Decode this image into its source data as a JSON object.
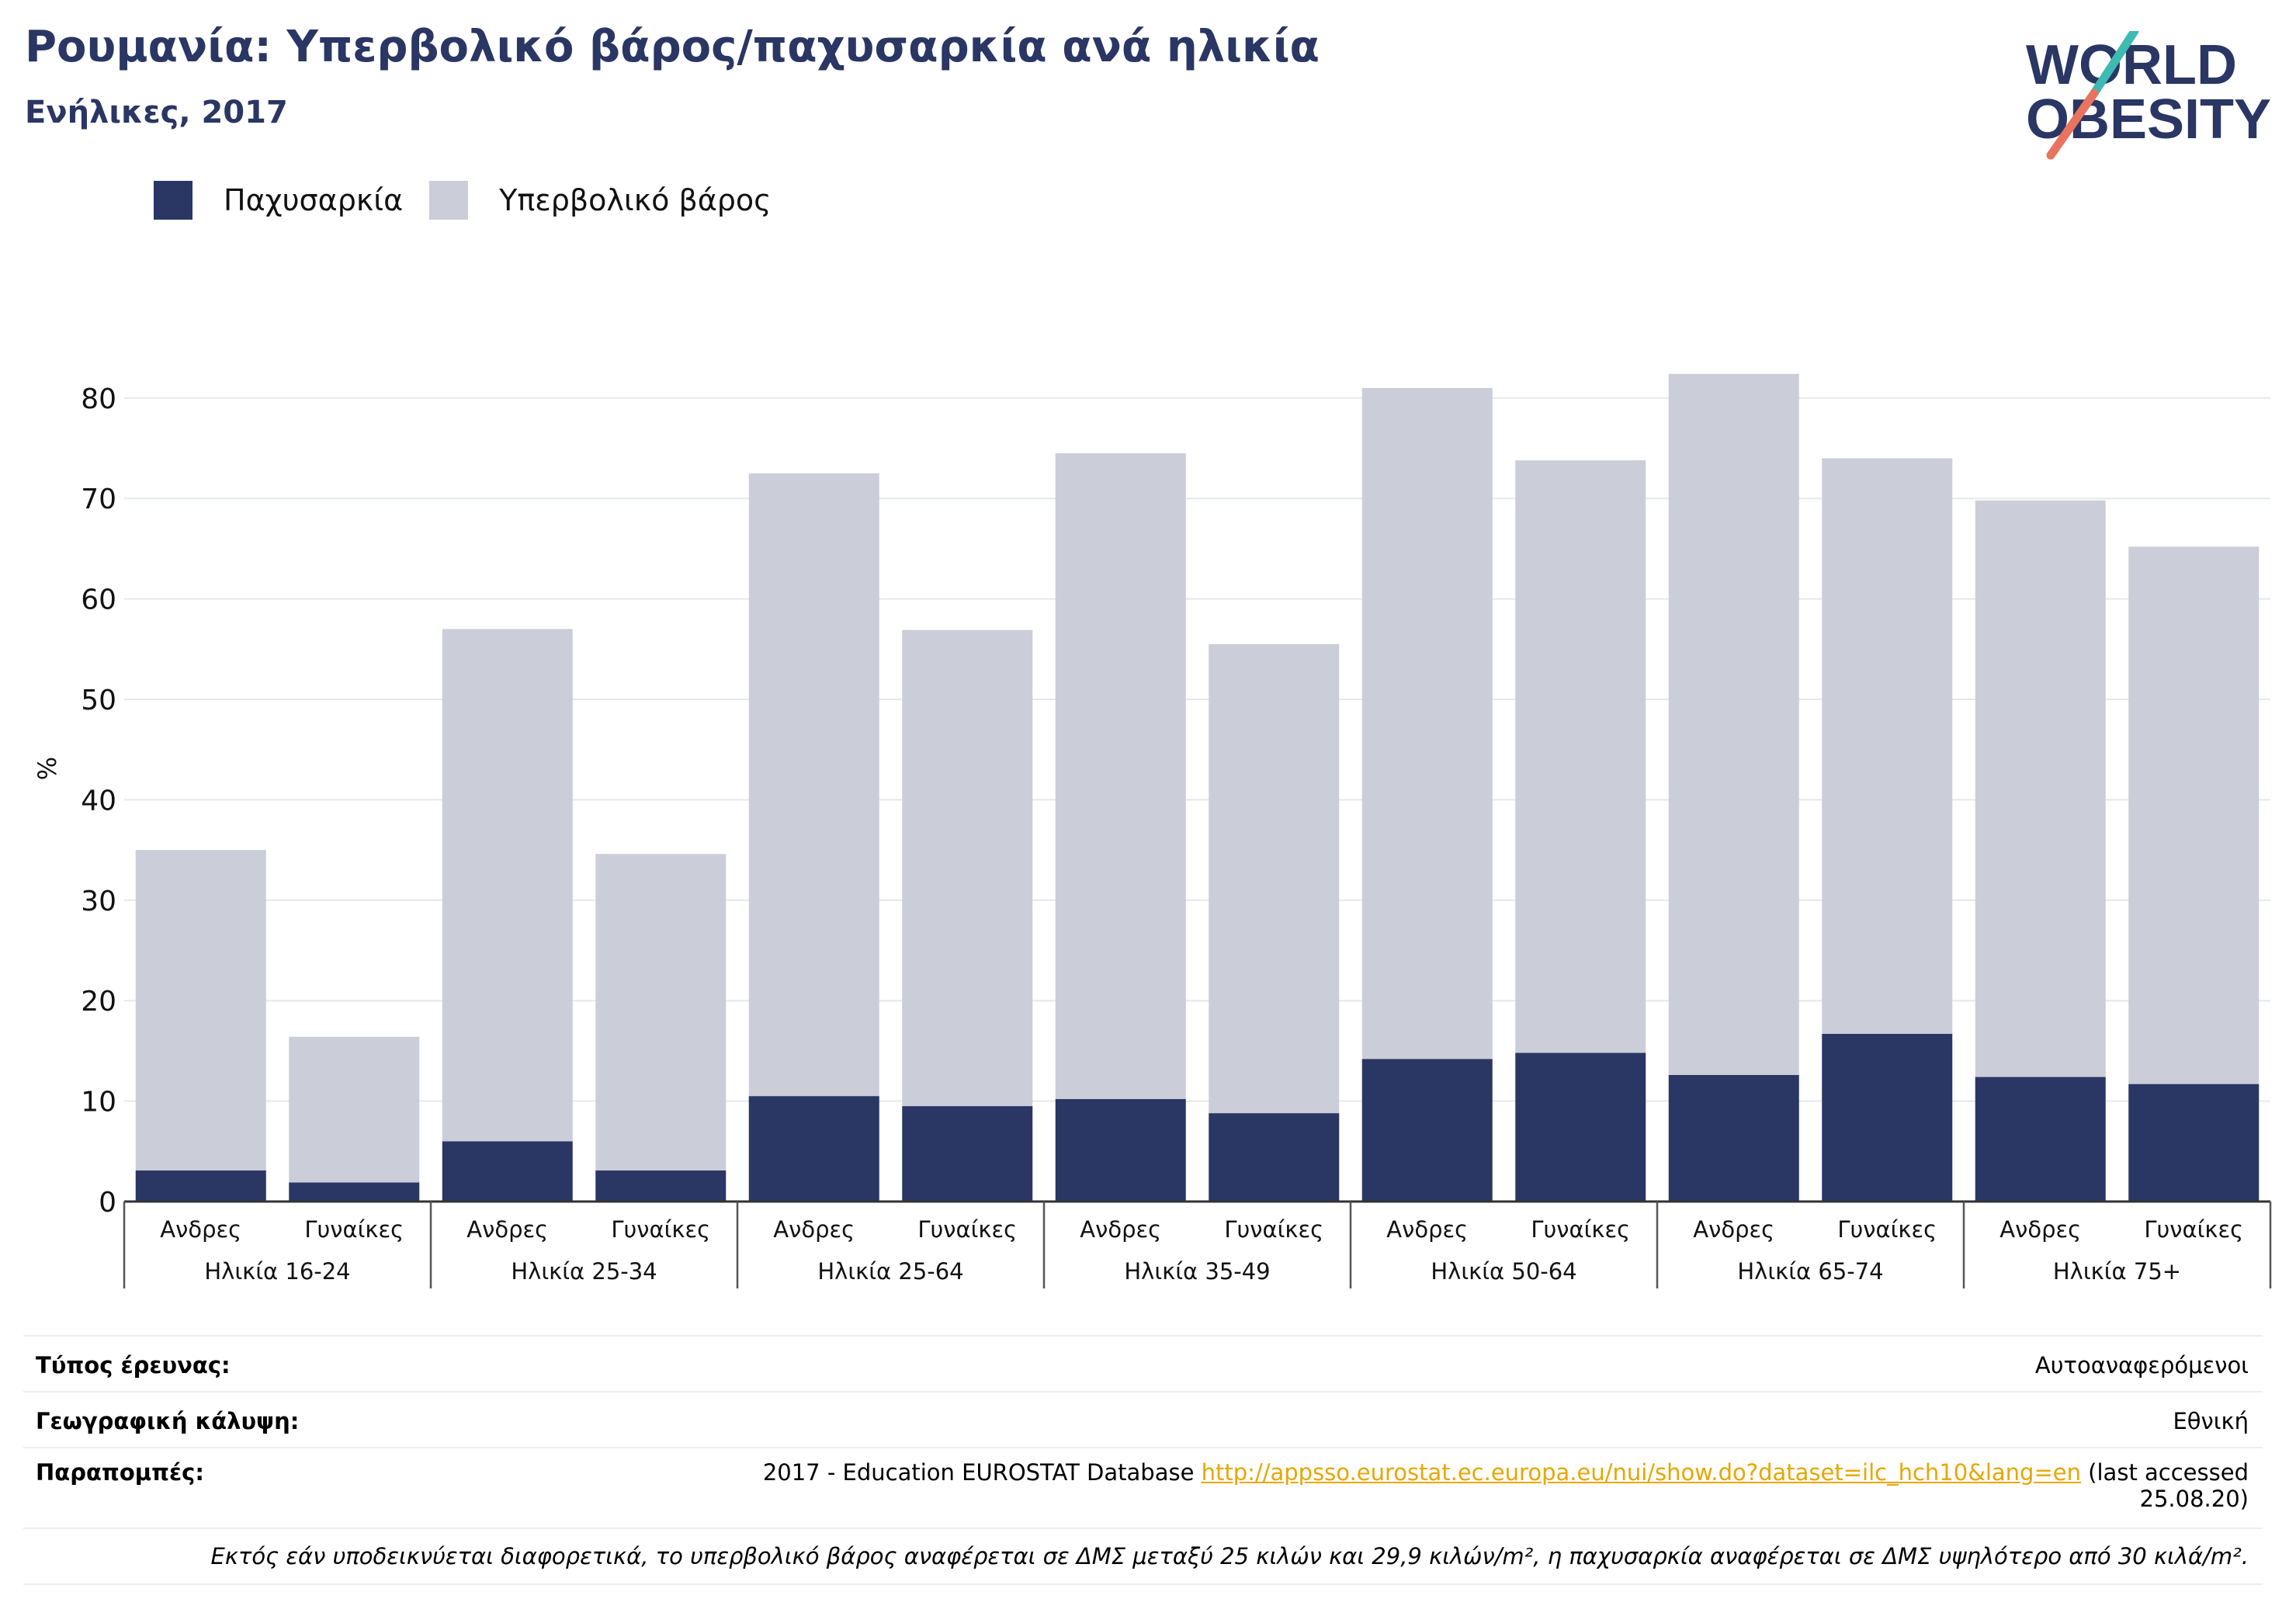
{
  "header": {
    "title": "Ρουμανία: Υπερβολικό βάρος/παχυσαρκία ανά ηλικία",
    "subtitle": "Ενήλικες, 2017"
  },
  "logo": {
    "line1": "WORLD",
    "line2": "OBESITY",
    "colors": {
      "text": "#2a3663",
      "slash_teal": "#3dbbb3",
      "slash_coral": "#e8735f"
    }
  },
  "legend": [
    {
      "label": "Παχυσαρκία",
      "color": "#2a3663"
    },
    {
      "label": "Υπερβολικό βάρος",
      "color": "#cbcdd8"
    }
  ],
  "chart_data": {
    "type": "bar",
    "stacked": true,
    "ylabel": "%",
    "ylim": [
      0,
      85
    ],
    "yticks": [
      0,
      10,
      20,
      30,
      40,
      50,
      60,
      70,
      80
    ],
    "grid": true,
    "legend_position": "top-left",
    "groups": [
      "Ηλικία 16-24",
      "Ηλικία 25-34",
      "Ηλικία 25-64",
      "Ηλικία 35-49",
      "Ηλικία 50-64",
      "Ηλικία 65-74",
      "Ηλικία 75+"
    ],
    "subcategories": [
      "Ανδρες",
      "Γυναίκες"
    ],
    "series": [
      {
        "name": "Παχυσαρκία",
        "color": "#2a3663",
        "values": [
          3.1,
          1.9,
          6.0,
          3.1,
          10.5,
          9.5,
          10.2,
          8.8,
          14.2,
          14.8,
          12.6,
          16.7,
          12.4,
          11.7
        ]
      },
      {
        "name": "Υπερβολικό βάρος",
        "color": "#cbcdd8",
        "values": [
          31.9,
          14.5,
          51.0,
          31.5,
          62.0,
          47.4,
          64.3,
          46.7,
          66.8,
          59.0,
          69.8,
          57.3,
          57.4,
          53.5
        ]
      }
    ],
    "totals": [
      35.0,
      16.4,
      57.0,
      34.6,
      72.5,
      56.9,
      74.5,
      55.5,
      81.0,
      73.8,
      82.4,
      74.0,
      69.8,
      65.2
    ]
  },
  "footer": {
    "survey_type": {
      "label": "Τύπος έρευνας:",
      "value": "Αυτοαναφερόμενοι"
    },
    "coverage": {
      "label": "Γεωγραφική κάλυψη:",
      "value": "Εθνική"
    },
    "references": {
      "label": "Παραπομπές:",
      "prefix": "2017 - Education EUROSTAT Database ",
      "link": "http://appsso.eurostat.ec.europa.eu/nui/show.do?dataset=ilc_hch10&lang=en",
      "suffix1": " (last accessed",
      "suffix2": "25.08.20)"
    },
    "note": "Εκτός εάν υποδεικνύεται διαφορετικά, το υπερβολικό βάρος αναφέρεται σε ΔΜΣ μεταξύ 25 κιλών και 29,9 κιλών/m², η παχυσαρκία αναφέρεται σε ΔΜΣ υψηλότερο από 30 κιλά/m²."
  }
}
